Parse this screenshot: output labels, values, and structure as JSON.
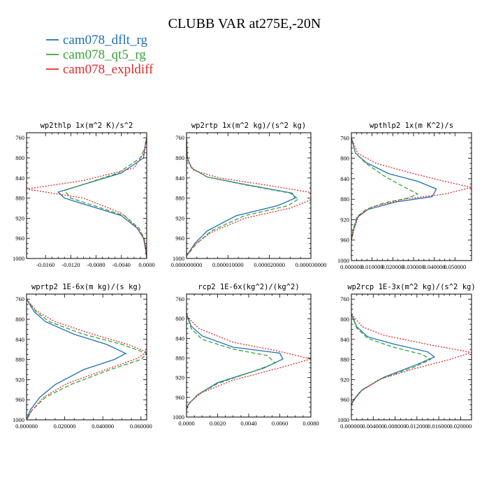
{
  "figure": {
    "title": "CLUBB VAR at275E,-20N"
  },
  "legend": [
    {
      "label": "cam078_dflt_rg",
      "color": "#1f6fb5"
    },
    {
      "label": "cam078_qt5_rg",
      "color": "#3aa23a"
    },
    {
      "label": "cam078_expldiff",
      "color": "#e8282b"
    }
  ],
  "chart_data": [
    {
      "type": "line",
      "title": "wp2thlp  1x(m^2 K)/s^2",
      "xlim": [
        -0.019,
        0.0
      ],
      "ylim": [
        1000,
        750
      ],
      "yticks": [
        760,
        800,
        840,
        880,
        920,
        960,
        1000
      ],
      "xticks": [
        -0.016,
        -0.012,
        -0.008,
        -0.004,
        0.0
      ],
      "xtick_labels": [
        "-0.0160",
        "-0.0120",
        "-0.0080",
        "-0.0040",
        "0.0000"
      ],
      "series": [
        {
          "name": "cam078_dflt_rg",
          "dash": "none",
          "points": [
            [
              0.0,
              760
            ],
            [
              -0.0003,
              780
            ],
            [
              -0.0005,
              800
            ],
            [
              -0.004,
              830
            ],
            [
              -0.014,
              868
            ],
            [
              -0.013,
              880
            ],
            [
              -0.004,
              915
            ],
            [
              -0.0015,
              940
            ],
            [
              -0.0005,
              960
            ],
            [
              -0.0002,
              980
            ],
            [
              0.0,
              1000
            ]
          ]
        },
        {
          "name": "cam078_qt5_rg",
          "dash": "6,3",
          "points": [
            [
              0.0,
              760
            ],
            [
              -0.0003,
              780
            ],
            [
              -0.001,
              800
            ],
            [
              -0.0045,
              830
            ],
            [
              -0.013,
              865
            ],
            [
              -0.012,
              880
            ],
            [
              -0.0035,
              915
            ],
            [
              -0.0012,
              940
            ],
            [
              -0.0004,
              960
            ],
            [
              -0.0001,
              980
            ],
            [
              0.0,
              1000
            ]
          ]
        },
        {
          "name": "cam078_expldiff",
          "dash": "2,2",
          "points": [
            [
              0.0,
              760
            ],
            [
              -0.0004,
              790
            ],
            [
              -0.002,
              820
            ],
            [
              -0.01,
              845
            ],
            [
              -0.019,
              862
            ],
            [
              -0.01,
              880
            ],
            [
              -0.004,
              910
            ],
            [
              -0.0014,
              940
            ],
            [
              -0.0005,
              960
            ],
            [
              -0.0001,
              980
            ],
            [
              0.0,
              1000
            ]
          ]
        }
      ]
    },
    {
      "type": "line",
      "title": "wp2rtp  1x(m^2 kg)/(s^2 kg)",
      "xlim": [
        0.0,
        3e-05
      ],
      "ylim": [
        1000,
        750
      ],
      "yticks": [
        760,
        800,
        840,
        880,
        920,
        960,
        1000
      ],
      "xticks": [
        0.0,
        1e-05,
        2e-05,
        3e-05
      ],
      "xtick_labels": [
        "0.000000000",
        "0.000010000",
        "0.000020000",
        "0.000030000"
      ],
      "series": [
        {
          "name": "cam078_dflt_rg",
          "dash": "none",
          "points": [
            [
              0.0,
              760
            ],
            [
              2e-07,
              800
            ],
            [
              1.2e-06,
              820
            ],
            [
              5e-06,
              838
            ],
            [
              1.55e-05,
              855
            ],
            [
              2.55e-05,
              870
            ],
            [
              2.62e-05,
              880
            ],
            [
              2.2e-05,
              895
            ],
            [
              1.2e-05,
              915
            ],
            [
              5e-06,
              945
            ],
            [
              2e-06,
              970
            ],
            [
              0.0,
              995
            ]
          ]
        },
        {
          "name": "cam078_qt5_rg",
          "dash": "6,3",
          "points": [
            [
              0.0,
              760
            ],
            [
              2e-07,
              800
            ],
            [
              1.2e-06,
              820
            ],
            [
              5e-06,
              838
            ],
            [
              1.5e-05,
              855
            ],
            [
              2.5e-05,
              870
            ],
            [
              2.7e-05,
              882
            ],
            [
              2.45e-05,
              895
            ],
            [
              1.4e-05,
              915
            ],
            [
              6e-06,
              945
            ],
            [
              2.5e-06,
              970
            ],
            [
              0.0,
              995
            ]
          ]
        },
        {
          "name": "cam078_expldiff",
          "dash": "2,2",
          "points": [
            [
              0.0,
              760
            ],
            [
              2e-07,
              805
            ],
            [
              1.8e-06,
              825
            ],
            [
              8e-06,
              840
            ],
            [
              2e-05,
              855
            ],
            [
              2.95e-05,
              868
            ],
            [
              3.1e-05,
              880
            ],
            [
              2.5e-05,
              900
            ],
            [
              1.4e-05,
              920
            ],
            [
              6e-06,
              948
            ],
            [
              2e-06,
              972
            ],
            [
              0.0,
              995
            ]
          ]
        }
      ]
    },
    {
      "type": "line",
      "title": "wpthlp2  1x(m K^2)/s",
      "xlim": [
        0.0,
        0.058
      ],
      "ylim": [
        1000,
        750
      ],
      "yticks": [
        760,
        800,
        840,
        880,
        920,
        960,
        1000
      ],
      "xticks": [
        0.0,
        0.01,
        0.02,
        0.03,
        0.04,
        0.05
      ],
      "xtick_labels": [
        "0.000000",
        "0.010000",
        "0.020000",
        "0.030000",
        "0.040000",
        "0.050000"
      ],
      "series": [
        {
          "name": "cam078_dflt_rg",
          "dash": "none",
          "points": [
            [
              0.0,
              760
            ],
            [
              0.002,
              790
            ],
            [
              0.007,
              808
            ],
            [
              0.018,
              830
            ],
            [
              0.032,
              845
            ],
            [
              0.041,
              860
            ],
            [
              0.039,
              875
            ],
            [
              0.022,
              885
            ],
            [
              0.008,
              900
            ],
            [
              0.003,
              915
            ],
            [
              0.001,
              940
            ],
            [
              0.0,
              960
            ]
          ]
        },
        {
          "name": "cam078_qt5_rg",
          "dash": "6,3",
          "points": [
            [
              0.0,
              760
            ],
            [
              0.002,
              790
            ],
            [
              0.007,
              810
            ],
            [
              0.016,
              835
            ],
            [
              0.025,
              855
            ],
            [
              0.032,
              870
            ],
            [
              0.027,
              878
            ],
            [
              0.016,
              887
            ],
            [
              0.007,
              900
            ],
            [
              0.0025,
              915
            ],
            [
              0.0008,
              940
            ],
            [
              0.0,
              960
            ]
          ]
        },
        {
          "name": "cam078_expldiff",
          "dash": "2,2",
          "points": [
            [
              0.0,
              760
            ],
            [
              0.003,
              790
            ],
            [
              0.012,
              810
            ],
            [
              0.03,
              830
            ],
            [
              0.045,
              845
            ],
            [
              0.058,
              857
            ],
            [
              0.045,
              870
            ],
            [
              0.025,
              880
            ],
            [
              0.01,
              895
            ],
            [
              0.0035,
              912
            ],
            [
              0.0012,
              940
            ],
            [
              0.0,
              960
            ]
          ]
        }
      ]
    },
    {
      "type": "line",
      "title": "wprtp2  1E-6x(m kg)/(s kg)",
      "xlim": [
        0.0,
        0.063
      ],
      "ylim": [
        1000,
        750
      ],
      "yticks": [
        760,
        800,
        840,
        880,
        920,
        960,
        1000
      ],
      "xticks": [
        0.0,
        0.02,
        0.04,
        0.06
      ],
      "xtick_labels": [
        "0.000000",
        "0.020000",
        "0.040000",
        "0.060000"
      ],
      "series": [
        {
          "name": "cam078_dflt_rg",
          "dash": "none",
          "points": [
            [
              0.0,
              760
            ],
            [
              0.004,
              785
            ],
            [
              0.01,
              805
            ],
            [
              0.025,
              830
            ],
            [
              0.042,
              850
            ],
            [
              0.052,
              868
            ],
            [
              0.046,
              880
            ],
            [
              0.03,
              900
            ],
            [
              0.015,
              930
            ],
            [
              0.007,
              955
            ],
            [
              0.002,
              980
            ],
            [
              0.0,
              1000
            ]
          ]
        },
        {
          "name": "cam078_qt5_rg",
          "dash": "6,3",
          "points": [
            [
              0.0,
              760
            ],
            [
              0.005,
              785
            ],
            [
              0.012,
              805
            ],
            [
              0.03,
              830
            ],
            [
              0.05,
              850
            ],
            [
              0.063,
              868
            ],
            [
              0.06,
              880
            ],
            [
              0.044,
              900
            ],
            [
              0.023,
              930
            ],
            [
              0.01,
              955
            ],
            [
              0.003,
              980
            ],
            [
              0.0,
              1000
            ]
          ]
        },
        {
          "name": "cam078_expldiff",
          "dash": "2,2",
          "points": [
            [
              0.0,
              760
            ],
            [
              0.005,
              783
            ],
            [
              0.015,
              805
            ],
            [
              0.035,
              830
            ],
            [
              0.053,
              850
            ],
            [
              0.063,
              865
            ],
            [
              0.058,
              878
            ],
            [
              0.043,
              898
            ],
            [
              0.021,
              928
            ],
            [
              0.009,
              955
            ],
            [
              0.003,
              980
            ],
            [
              0.0,
              1000
            ]
          ]
        }
      ]
    },
    {
      "type": "line",
      "title": "rcp2  1E-6x(kg^2)/(kg^2)",
      "xlim": [
        0.0,
        0.008
      ],
      "ylim": [
        1000,
        750
      ],
      "yticks": [
        760,
        800,
        840,
        880,
        920,
        960,
        1000
      ],
      "xticks": [
        0.0,
        0.002,
        0.004,
        0.006,
        0.008
      ],
      "xtick_labels": [
        "0.0000",
        "0.0020",
        "0.0040",
        "0.0060",
        "0.0080"
      ],
      "series": [
        {
          "name": "cam078_dflt_rg",
          "dash": "none",
          "points": [
            [
              0.0,
              790
            ],
            [
              0.0003,
              815
            ],
            [
              0.001,
              835
            ],
            [
              0.003,
              858
            ],
            [
              0.006,
              870
            ],
            [
              0.0062,
              882
            ],
            [
              0.005,
              900
            ],
            [
              0.002,
              930
            ],
            [
              0.0007,
              955
            ],
            [
              0.0001,
              975
            ],
            [
              0.0,
              985
            ]
          ]
        },
        {
          "name": "cam078_qt5_rg",
          "dash": "6,3",
          "points": [
            [
              0.0,
              790
            ],
            [
              0.0003,
              820
            ],
            [
              0.001,
              842
            ],
            [
              0.003,
              862
            ],
            [
              0.0052,
              875
            ],
            [
              0.0057,
              890
            ],
            [
              0.0045,
              905
            ],
            [
              0.002,
              932
            ],
            [
              0.0007,
              955
            ],
            [
              0.0001,
              975
            ],
            [
              0.0,
              985
            ]
          ]
        },
        {
          "name": "cam078_expldiff",
          "dash": "2,2",
          "points": [
            [
              0.0,
              795
            ],
            [
              0.0008,
              820
            ],
            [
              0.003,
              848
            ],
            [
              0.0058,
              865
            ],
            [
              0.008,
              882
            ],
            [
              0.006,
              900
            ],
            [
              0.003,
              925
            ],
            [
              0.001,
              950
            ],
            [
              0.0002,
              970
            ],
            [
              0.0,
              985
            ]
          ]
        }
      ]
    },
    {
      "type": "line",
      "title": "wp2rcp  1E-3x(m^2 kg)/(s^2 kg)",
      "xlim": [
        0.0,
        0.022
      ],
      "ylim": [
        1000,
        750
      ],
      "yticks": [
        760,
        800,
        840,
        880,
        920,
        960,
        1000
      ],
      "xticks": [
        0.0,
        0.004,
        0.008,
        0.012,
        0.016,
        0.02
      ],
      "xtick_labels": [
        "0.000000",
        "0.004000",
        "0.008000",
        "0.012000",
        "0.016000",
        "0.020000"
      ],
      "series": [
        {
          "name": "cam078_dflt_rg",
          "dash": "none",
          "points": [
            [
              0.0,
              790
            ],
            [
              0.001,
              815
            ],
            [
              0.003,
              835
            ],
            [
              0.008,
              850
            ],
            [
              0.014,
              865
            ],
            [
              0.0152,
              875
            ],
            [
              0.012,
              890
            ],
            [
              0.006,
              915
            ],
            [
              0.002,
              940
            ],
            [
              0.0005,
              960
            ],
            [
              0.0,
              970
            ]
          ]
        },
        {
          "name": "cam078_qt5_rg",
          "dash": "6,3",
          "points": [
            [
              0.0,
              790
            ],
            [
              0.001,
              818
            ],
            [
              0.003,
              838
            ],
            [
              0.0075,
              855
            ],
            [
              0.013,
              870
            ],
            [
              0.0145,
              880
            ],
            [
              0.0115,
              895
            ],
            [
              0.0055,
              918
            ],
            [
              0.0018,
              942
            ],
            [
              0.0004,
              960
            ],
            [
              0.0,
              970
            ]
          ]
        },
        {
          "name": "cam078_expldiff",
          "dash": "2,2",
          "points": [
            [
              0.0,
              790
            ],
            [
              0.002,
              815
            ],
            [
              0.006,
              832
            ],
            [
              0.014,
              850
            ],
            [
              0.022,
              866
            ],
            [
              0.018,
              880
            ],
            [
              0.011,
              900
            ],
            [
              0.005,
              920
            ],
            [
              0.0015,
              945
            ],
            [
              0.0003,
              962
            ],
            [
              0.0,
              970
            ]
          ]
        }
      ]
    }
  ]
}
